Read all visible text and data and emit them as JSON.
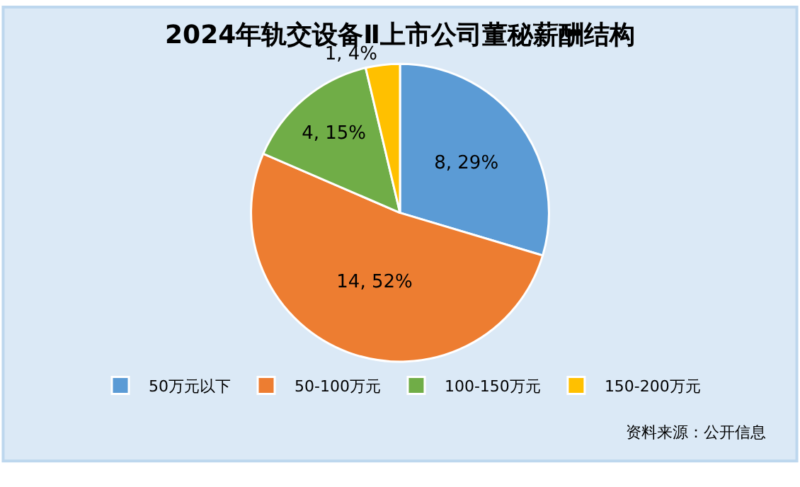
{
  "chart_data": {
    "type": "pie",
    "title": "2024年轨交设备Ⅱ上市公司董秘薪酬结构",
    "categories": [
      "50万元以下",
      "50-100万元",
      "100-150万元",
      "150-200万元"
    ],
    "values": [
      8,
      14,
      4,
      1
    ],
    "value_labels": [
      "8, 29%",
      "14, 52%",
      "4, 15%",
      "1, 4%"
    ],
    "colors": [
      "#5b9bd5",
      "#ed7d31",
      "#70ad47",
      "#ffc000"
    ],
    "legend": "bottom",
    "annotations": [
      "资料来源：公开信息"
    ]
  }
}
